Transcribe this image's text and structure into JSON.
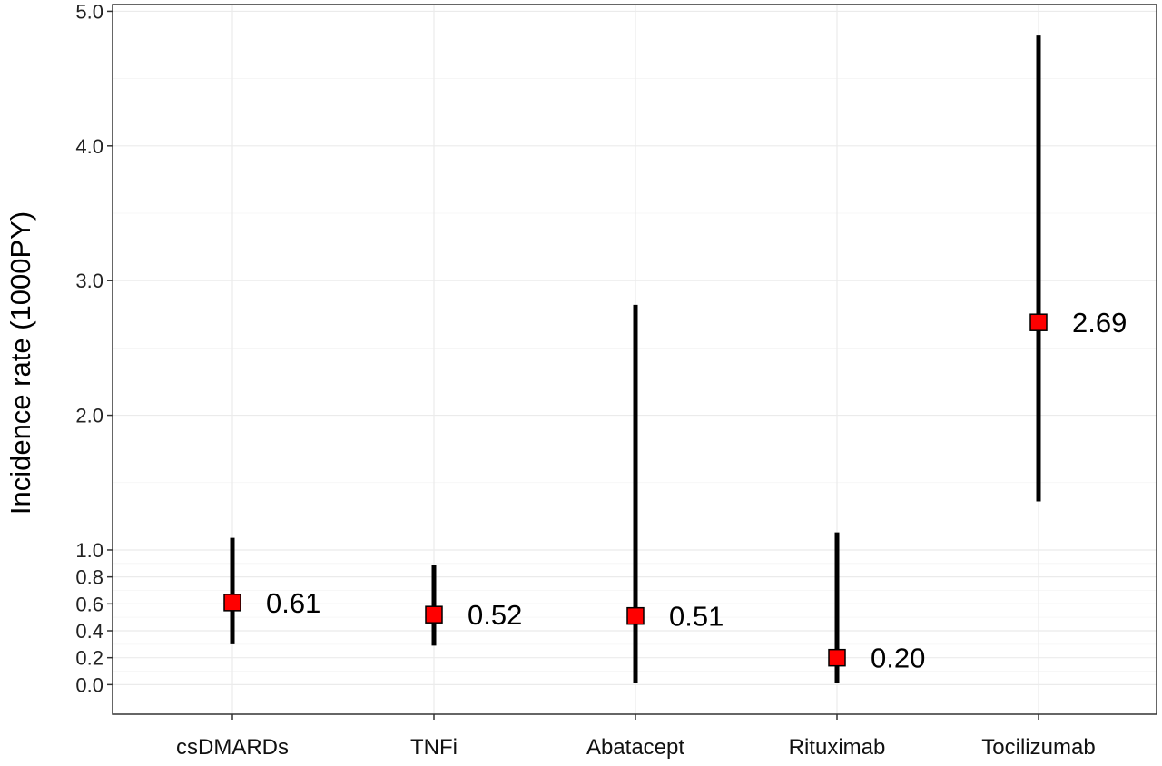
{
  "chart_data": {
    "type": "scatter",
    "title": "",
    "xlabel": "",
    "ylabel": "Incidence rate (1000PY)",
    "categories": [
      "csDMARDs",
      "TNFi",
      "Abatacept",
      "Rituximab",
      "Tocilizumab"
    ],
    "estimates": [
      0.61,
      0.52,
      0.51,
      0.2,
      2.69
    ],
    "value_labels": [
      "0.61",
      "0.52",
      "0.51",
      "0.20",
      "2.69"
    ],
    "lower": [
      0.3,
      0.29,
      0.01,
      0.01,
      1.36
    ],
    "upper": [
      1.09,
      0.89,
      2.82,
      1.13,
      4.82
    ],
    "ylim": [
      -0.22,
      5.05
    ],
    "yticks": [
      0.0,
      0.2,
      0.4,
      0.6,
      0.8,
      1.0,
      2.0,
      3.0,
      4.0,
      5.0
    ],
    "ytick_labels": [
      "0.0",
      "0.2",
      "0.4",
      "0.6",
      "0.8",
      "1.0",
      "2.0",
      "3.0",
      "4.0",
      "5.0"
    ],
    "grid": true,
    "legend": "none",
    "marker": "square",
    "colors": {
      "marker_fill": "#ff0000",
      "marker_edge": "#000000",
      "error_bar": "#000000",
      "grid": "#ebebeb",
      "axis": "#333333"
    }
  }
}
